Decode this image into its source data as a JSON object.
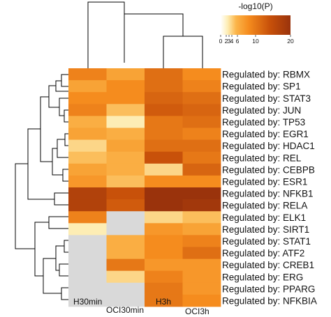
{
  "chart_data": {
    "type": "heatmap",
    "columns": [
      "H30min",
      "OCI30min",
      "H3h",
      "OCI3h"
    ],
    "rows": [
      "Regulated by: RBMX",
      "Regulated by: SP1",
      "Regulated by: STAT3",
      "Regulated by: JUN",
      "Regulated by: TP53",
      "Regulated by: EGR1",
      "Regulated by: HDAC1",
      "Regulated by: REL",
      "Regulated by: CEBPB",
      "Regulated by: ESR1",
      "Regulated by: NFKB1",
      "Regulated by: RELA",
      "Regulated by: ELK1",
      "Regulated by: SIRT1",
      "Regulated by: STAT1",
      "Regulated by: ATF2",
      "Regulated by: CREB1",
      "Regulated by: ERG",
      "Regulated by: PPARG",
      "Regulated by: NFKBIA"
    ],
    "values": [
      [
        9,
        6,
        11,
        8
      ],
      [
        6,
        8,
        11,
        9
      ],
      [
        8,
        8,
        12,
        11
      ],
      [
        9,
        4,
        13,
        12
      ],
      [
        5,
        2,
        10,
        11
      ],
      [
        6,
        5,
        10,
        9
      ],
      [
        3,
        6,
        11,
        11
      ],
      [
        4,
        5,
        14,
        10
      ],
      [
        6,
        5,
        3,
        12
      ],
      [
        7,
        4,
        8,
        8
      ],
      [
        17,
        14,
        20,
        20
      ],
      [
        17,
        13,
        20,
        19
      ],
      [
        9,
        null,
        3,
        4
      ],
      [
        2,
        null,
        7,
        6
      ],
      [
        null,
        5,
        8,
        9
      ],
      [
        null,
        5,
        8,
        11
      ],
      [
        null,
        10,
        7,
        7
      ],
      [
        null,
        3,
        9,
        7
      ],
      [
        null,
        null,
        10,
        7
      ],
      [
        null,
        null,
        10,
        8
      ]
    ],
    "missing_color": "#d9d9d9",
    "colorbar": {
      "title": "-log10(P)",
      "min": 0,
      "max": 20,
      "tick_values": [
        0,
        2,
        3,
        4,
        6,
        10,
        20
      ],
      "tick_labels": [
        "0",
        "2",
        "3",
        "4",
        "6",
        "10",
        "20"
      ],
      "colors": [
        "#ffffff",
        "#fdedb4",
        "#fbb54a",
        "#f58c1e",
        "#c8510a",
        "#9a330c"
      ],
      "placement": "top-right"
    },
    "row_dendrogram": true,
    "column_dendrogram": true
  }
}
